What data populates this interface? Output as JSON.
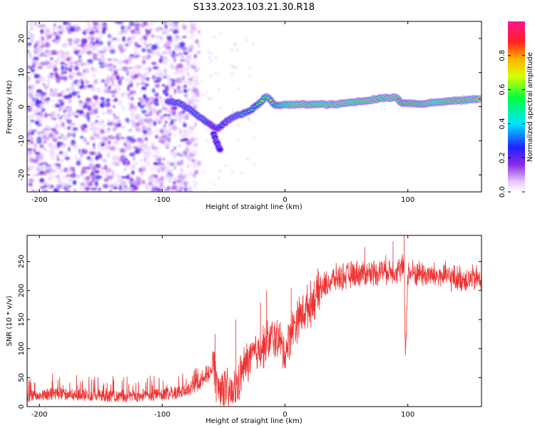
{
  "title": "S133.2023.103.21.30.R18",
  "colors": {
    "snr_line": "#ee3333",
    "background": "#ffffff",
    "axis": "#000000"
  },
  "chart_data": [
    {
      "type": "heatmap",
      "xlabel": "Height of straight line (km)",
      "ylabel": "Frequency (Hz)",
      "xlim": [
        -210,
        160
      ],
      "ylim": [
        -25,
        25
      ],
      "x_ticks": [
        -200,
        -100,
        0,
        100
      ],
      "y_ticks": [
        -20,
        -10,
        0,
        10,
        20
      ],
      "colorbar": {
        "label": "Normalized spectral amplitude",
        "range": [
          0,
          1
        ],
        "ticks": [
          "0.0",
          "0.2",
          "0.4",
          "0.6",
          "0.8"
        ],
        "colormap": "rainbow (white-violet-blue-cyan-green-yellow-red-magenta)"
      },
      "noise_region_x": [
        -210,
        -80
      ],
      "ridge": [
        {
          "x": -95,
          "y": 1.5,
          "amp": 0.4
        },
        {
          "x": -85,
          "y": 1.0,
          "amp": 0.45
        },
        {
          "x": -75,
          "y": -1.5,
          "amp": 0.4
        },
        {
          "x": -68,
          "y": -3.5,
          "amp": 0.45
        },
        {
          "x": -60,
          "y": -5.5,
          "amp": 0.3
        },
        {
          "x": -55,
          "y": -6.5,
          "amp": 0.25
        },
        {
          "x": -50,
          "y": -5.0,
          "amp": 0.35
        },
        {
          "x": -44,
          "y": -3.5,
          "amp": 0.45
        },
        {
          "x": -38,
          "y": -2.5,
          "amp": 0.5
        },
        {
          "x": -30,
          "y": -1.5,
          "amp": 0.55
        },
        {
          "x": -22,
          "y": 0.5,
          "amp": 0.6
        },
        {
          "x": -15,
          "y": 3.0,
          "amp": 0.75
        },
        {
          "x": -8,
          "y": 0.5,
          "amp": 0.7
        },
        {
          "x": 0,
          "y": 0.5,
          "amp": 0.85
        },
        {
          "x": 20,
          "y": 0.7,
          "amp": 0.95
        },
        {
          "x": 40,
          "y": 0.6,
          "amp": 0.9
        },
        {
          "x": 60,
          "y": 1.5,
          "amp": 0.95
        },
        {
          "x": 80,
          "y": 2.5,
          "amp": 0.95
        },
        {
          "x": 90,
          "y": 2.8,
          "amp": 0.9
        },
        {
          "x": 95,
          "y": 1.2,
          "amp": 0.8
        },
        {
          "x": 110,
          "y": 0.8,
          "amp": 0.85
        },
        {
          "x": 130,
          "y": 1.5,
          "amp": 0.95
        },
        {
          "x": 150,
          "y": 2.0,
          "amp": 0.95
        },
        {
          "x": 160,
          "y": 2.5,
          "amp": 0.9
        }
      ],
      "secondary_branch": [
        {
          "x": -58,
          "y": -8.0,
          "amp": 0.3
        },
        {
          "x": -55,
          "y": -11.0,
          "amp": 0.3
        },
        {
          "x": -52,
          "y": -13.5,
          "amp": 0.25
        }
      ]
    },
    {
      "type": "line",
      "xlabel": "Height of straight line (km)",
      "ylabel": "SNR (10 * v/v)",
      "xlim": [
        -210,
        160
      ],
      "ylim": [
        0,
        295
      ],
      "x_ticks": [
        -200,
        -100,
        0,
        100
      ],
      "y_ticks": [
        0,
        50,
        100,
        150,
        200,
        250
      ],
      "series": [
        {
          "x": [
            -210,
            -190,
            -170,
            -150,
            -130,
            -110,
            -90,
            -80,
            -70,
            -62,
            -58,
            -55,
            -50,
            -45,
            -40,
            -35,
            -30,
            -25,
            -20,
            -15,
            -10,
            -5,
            0,
            5,
            10,
            20,
            30,
            40,
            50,
            60,
            70,
            80,
            90,
            97,
            98,
            100,
            110,
            120,
            130,
            140,
            150,
            160
          ],
          "y": [
            15,
            20,
            18,
            16,
            15,
            17,
            20,
            25,
            35,
            50,
            80,
            30,
            35,
            20,
            30,
            60,
            80,
            90,
            100,
            110,
            120,
            115,
            90,
            130,
            150,
            175,
            205,
            220,
            225,
            230,
            230,
            235,
            235,
            240,
            90,
            230,
            230,
            225,
            225,
            220,
            220,
            220
          ]
        }
      ],
      "spikes": [
        {
          "x": -57,
          "y": 125
        },
        {
          "x": -40,
          "y": 150
        },
        {
          "x": -20,
          "y": 180
        },
        {
          "x": -15,
          "y": 200
        },
        {
          "x": 5,
          "y": 205
        },
        {
          "x": 65,
          "y": 275
        },
        {
          "x": 88,
          "y": 285
        },
        {
          "x": 97,
          "y": 310
        },
        {
          "x": 98,
          "y": 88
        }
      ]
    }
  ]
}
